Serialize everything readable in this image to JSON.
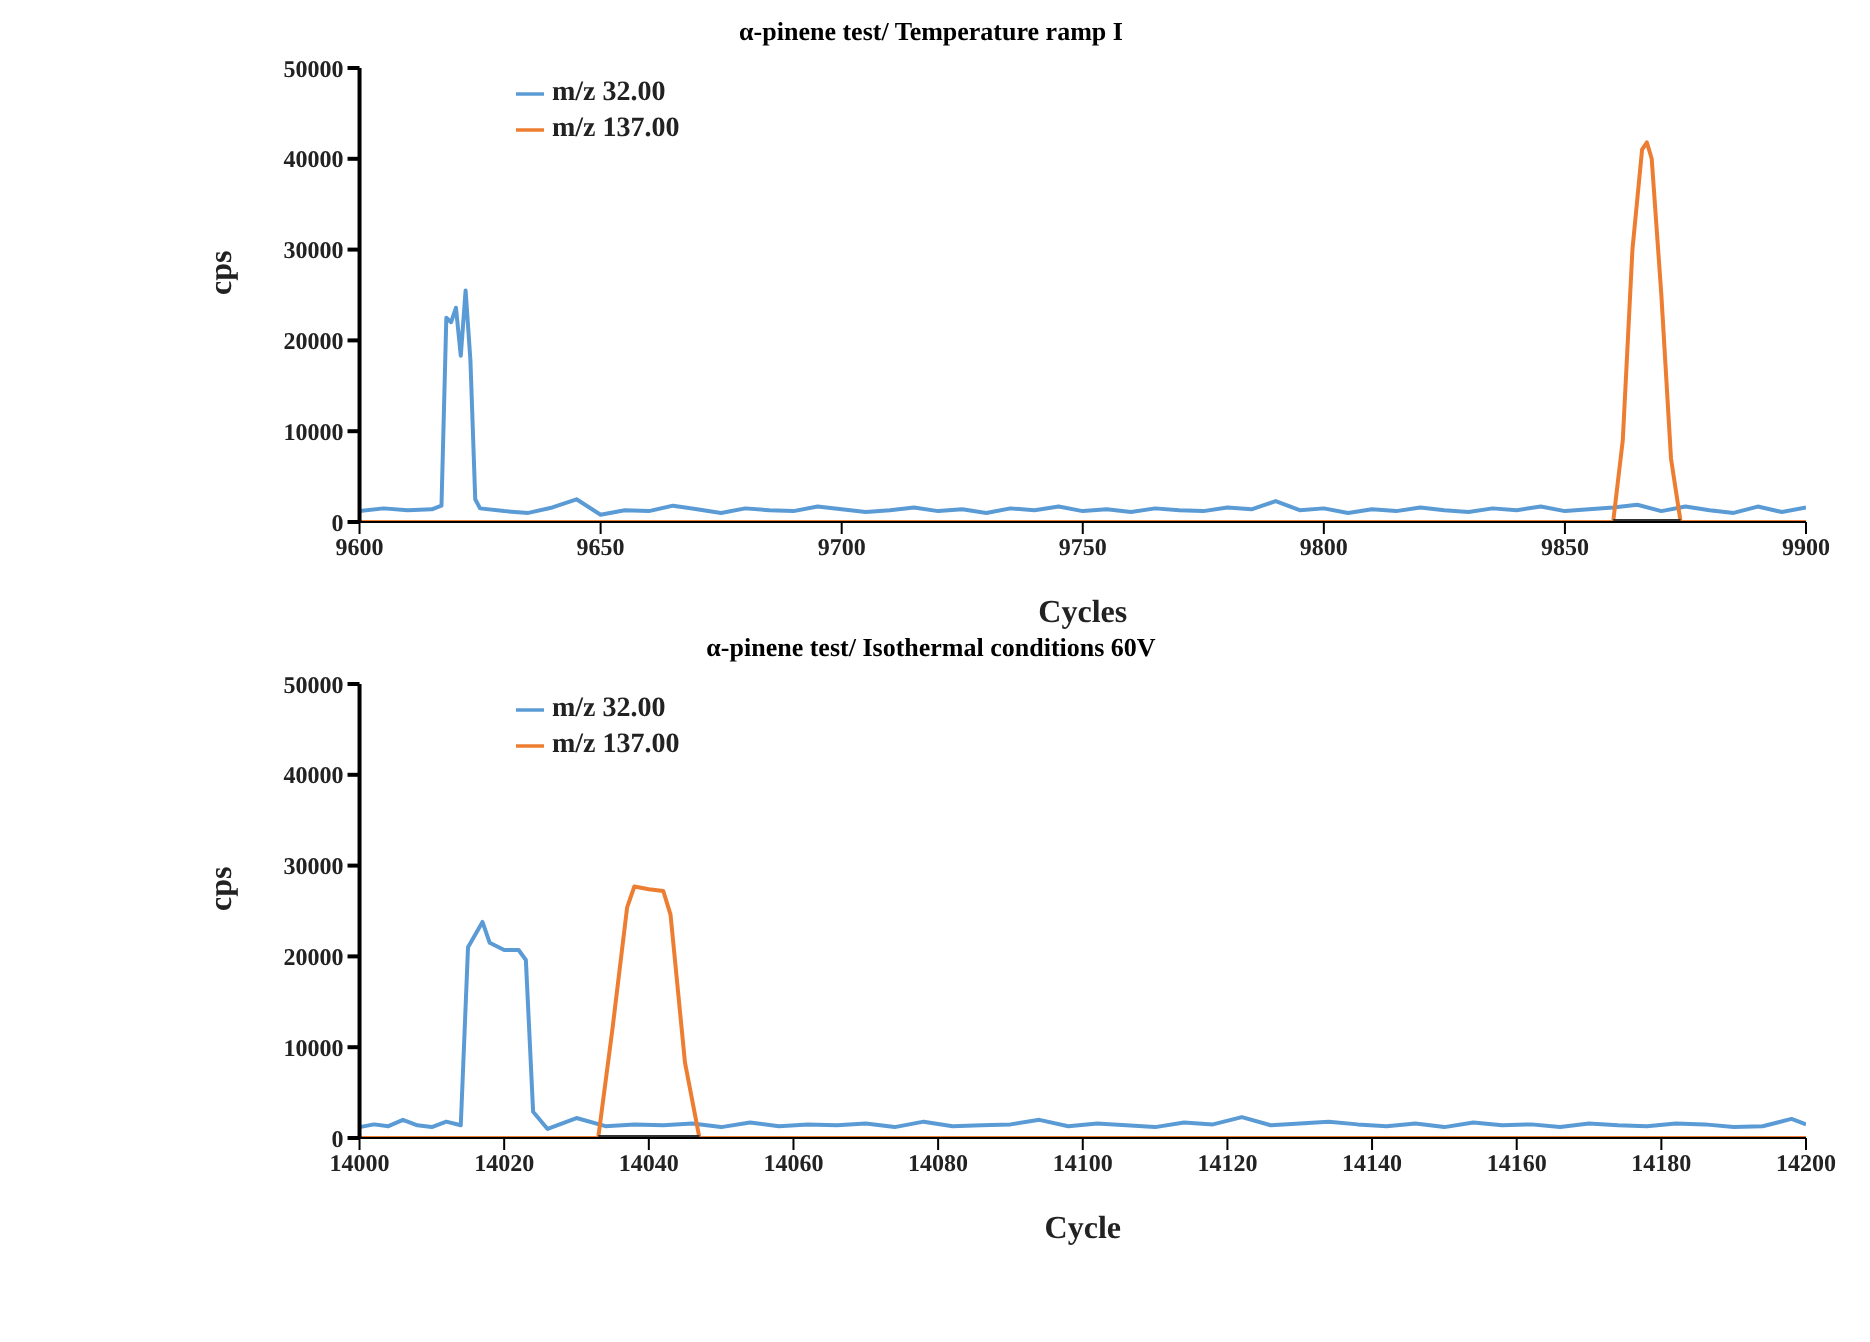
{
  "chart_data": [
    {
      "type": "line",
      "title": "α-pinene test/ Temperature ramp I",
      "xlabel": "Cycles",
      "ylabel": "cps",
      "xlim": [
        9600,
        9900
      ],
      "xticks": [
        9600,
        9650,
        9700,
        9750,
        9800,
        9850,
        9900
      ],
      "ylim": [
        0,
        50000
      ],
      "yticks": [
        0,
        10000,
        20000,
        30000,
        40000,
        50000
      ],
      "legend": "top left",
      "marker": "none",
      "line_style": "solid",
      "series": [
        {
          "name": "m/z 32.00",
          "color": "#5b9bd5",
          "x": [
            9600,
            9605,
            9610,
            9615,
            9617,
            9618,
            9619,
            9620,
            9621,
            9622,
            9623,
            9624,
            9625,
            9630,
            9635,
            9640,
            9645,
            9650,
            9655,
            9660,
            9665,
            9670,
            9675,
            9680,
            9685,
            9690,
            9695,
            9700,
            9705,
            9710,
            9715,
            9720,
            9725,
            9730,
            9735,
            9740,
            9745,
            9750,
            9755,
            9760,
            9765,
            9770,
            9775,
            9780,
            9785,
            9790,
            9795,
            9800,
            9805,
            9810,
            9815,
            9820,
            9825,
            9830,
            9835,
            9840,
            9845,
            9850,
            9855,
            9860,
            9865,
            9870,
            9875,
            9880,
            9885,
            9890,
            9895,
            9900
          ],
          "values": [
            1200,
            1500,
            1300,
            1400,
            1800,
            22500,
            22000,
            23600,
            18300,
            25500,
            17800,
            2500,
            1500,
            1200,
            1000,
            1600,
            2500,
            800,
            1300,
            1200,
            1800,
            1400,
            1000,
            1500,
            1300,
            1200,
            1700,
            1400,
            1100,
            1300,
            1600,
            1200,
            1400,
            1000,
            1500,
            1300,
            1700,
            1200,
            1400,
            1100,
            1500,
            1300,
            1200,
            1600,
            1400,
            2300,
            1300,
            1500,
            1000,
            1400,
            1200,
            1600,
            1300,
            1100,
            1500,
            1300,
            1700,
            1200,
            1400,
            1600,
            1900,
            1200,
            1700,
            1300,
            1000,
            1700,
            1100,
            1600
          ]
        },
        {
          "name": "m/z 137.00",
          "color": "#ed7d31",
          "x": [
            9600,
            9860,
            9862,
            9864,
            9866,
            9867,
            9868,
            9870,
            9872,
            9874,
            9900
          ],
          "values": [
            0,
            0,
            9000,
            30000,
            41000,
            41800,
            40000,
            25000,
            7000,
            0,
            0
          ]
        },
        {
          "color": "#333333",
          "x": [
            9860,
            9874
          ],
          "values": [
            0,
            0
          ]
        }
      ]
    },
    {
      "type": "line",
      "title": "α-pinene test/ Isothermal conditions 60V",
      "xlabel": "Cycle",
      "ylabel": "cps",
      "xlim": [
        14000,
        14200
      ],
      "xticks": [
        14000,
        14020,
        14040,
        14060,
        14080,
        14100,
        14120,
        14140,
        14160,
        14180,
        14200
      ],
      "ylim": [
        0,
        50000
      ],
      "yticks": [
        0,
        10000,
        20000,
        30000,
        40000,
        50000
      ],
      "legend": "top left",
      "marker": "none",
      "line_style": "solid",
      "series": [
        {
          "name": "m/z 32.00",
          "color": "#5b9bd5",
          "x": [
            14000,
            14002,
            14004,
            14006,
            14008,
            14010,
            14012,
            14014,
            14015,
            14017,
            14018,
            14020,
            14022,
            14023,
            14024,
            14026,
            14030,
            14034,
            14038,
            14042,
            14046,
            14050,
            14054,
            14058,
            14062,
            14066,
            14070,
            14074,
            14078,
            14082,
            14086,
            14090,
            14094,
            14098,
            14102,
            14106,
            14110,
            14114,
            14118,
            14122,
            14126,
            14130,
            14134,
            14138,
            14142,
            14146,
            14150,
            14154,
            14158,
            14162,
            14166,
            14170,
            14174,
            14178,
            14182,
            14186,
            14190,
            14194,
            14198,
            14200
          ],
          "values": [
            1200,
            1500,
            1300,
            2000,
            1400,
            1200,
            1800,
            1400,
            21000,
            23800,
            21500,
            20700,
            20700,
            19600,
            2900,
            1000,
            2200,
            1300,
            1500,
            1400,
            1600,
            1200,
            1700,
            1300,
            1500,
            1400,
            1600,
            1200,
            1800,
            1300,
            1400,
            1500,
            2000,
            1300,
            1600,
            1400,
            1200,
            1700,
            1500,
            2300,
            1400,
            1600,
            1800,
            1500,
            1300,
            1600,
            1200,
            1700,
            1400,
            1500,
            1200,
            1600,
            1400,
            1300,
            1600,
            1500,
            1200,
            1300,
            2100,
            1500
          ]
        },
        {
          "name": "m/z 137.00",
          "color": "#ed7d31",
          "x": [
            14000,
            14033,
            14035,
            14037,
            14038,
            14040,
            14042,
            14043,
            14045,
            14047,
            14200
          ],
          "values": [
            0,
            0,
            12200,
            25400,
            27700,
            27400,
            27200,
            24600,
            8300,
            0,
            0
          ]
        },
        {
          "color": "#333333",
          "x": [
            14033,
            14047
          ],
          "values": [
            0,
            0
          ]
        }
      ]
    }
  ]
}
